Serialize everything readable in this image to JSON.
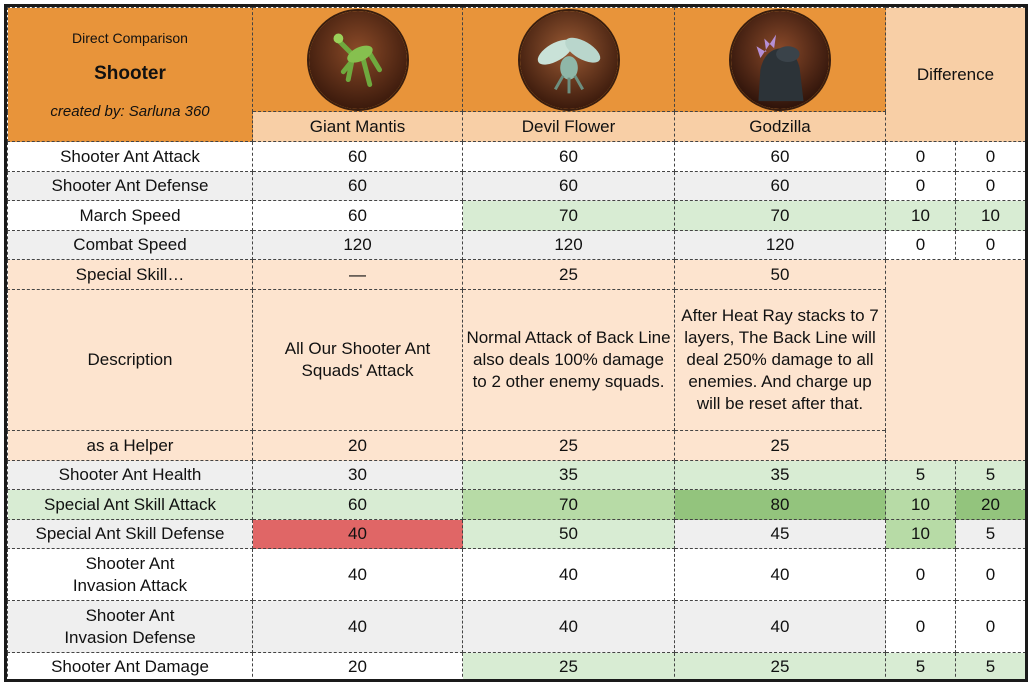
{
  "header": {
    "title_small": "Direct Comparison",
    "title": "Shooter",
    "credit": "created by: Sarluna 360",
    "difference_label": "Difference",
    "columns": [
      "Giant Mantis",
      "Devil Flower",
      "Godzilla"
    ],
    "portrait_icons": [
      "mantis-portrait-icon",
      "devil-flower-portrait-icon",
      "godzilla-portrait-icon"
    ]
  },
  "colors": {
    "header_orange": "#e8943a",
    "header_peach": "#f8cfa6",
    "row_peach": "#fde4cf",
    "row_gray": "#efefef",
    "green_light": "#d8ecd3",
    "green_mid": "#b7dba6",
    "green_dark": "#93c47d",
    "red": "#e06666"
  },
  "rows": {
    "r1": {
      "label": "Shooter Ant Attack",
      "v": [
        "60",
        "60",
        "60"
      ],
      "d": [
        "0",
        "0"
      ]
    },
    "r2": {
      "label": "Shooter Ant Defense",
      "v": [
        "60",
        "60",
        "60"
      ],
      "d": [
        "0",
        "0"
      ]
    },
    "r3": {
      "label": "March Speed",
      "v": [
        "60",
        "70",
        "70"
      ],
      "d": [
        "10",
        "10"
      ]
    },
    "r4": {
      "label": "Combat Speed",
      "v": [
        "120",
        "120",
        "120"
      ],
      "d": [
        "0",
        "0"
      ]
    },
    "r5": {
      "label": "Special Skill…",
      "v": [
        "—",
        "25",
        "50"
      ]
    },
    "r6": {
      "label": "Description",
      "v": [
        "All Our Shooter Ant Squads' Attack",
        "Normal Attack of Back Line also deals 100% damage to 2 other enemy squads.",
        "After Heat Ray stacks to 7 layers, The Back Line will deal 250% damage to all enemies. And charge up will be reset after that."
      ]
    },
    "r7": {
      "label": "as a Helper",
      "v": [
        "20",
        "25",
        "25"
      ]
    },
    "r8": {
      "label": "Shooter Ant Health",
      "v": [
        "30",
        "35",
        "35"
      ],
      "d": [
        "5",
        "5"
      ]
    },
    "r9": {
      "label": "Special Ant Skill Attack",
      "v": [
        "60",
        "70",
        "80"
      ],
      "d": [
        "10",
        "20"
      ]
    },
    "r10": {
      "label": "Special Ant Skill Defense",
      "v": [
        "40",
        "50",
        "45"
      ],
      "d": [
        "10",
        "5"
      ]
    },
    "r11": {
      "label": "Shooter Ant\nInvasion Attack",
      "v": [
        "40",
        "40",
        "40"
      ],
      "d": [
        "0",
        "0"
      ]
    },
    "r12": {
      "label": "Shooter Ant\nInvasion Defense",
      "v": [
        "40",
        "40",
        "40"
      ],
      "d": [
        "0",
        "0"
      ]
    },
    "r13": {
      "label": "Shooter Ant Damage",
      "v": [
        "20",
        "25",
        "25"
      ],
      "d": [
        "5",
        "5"
      ]
    }
  }
}
